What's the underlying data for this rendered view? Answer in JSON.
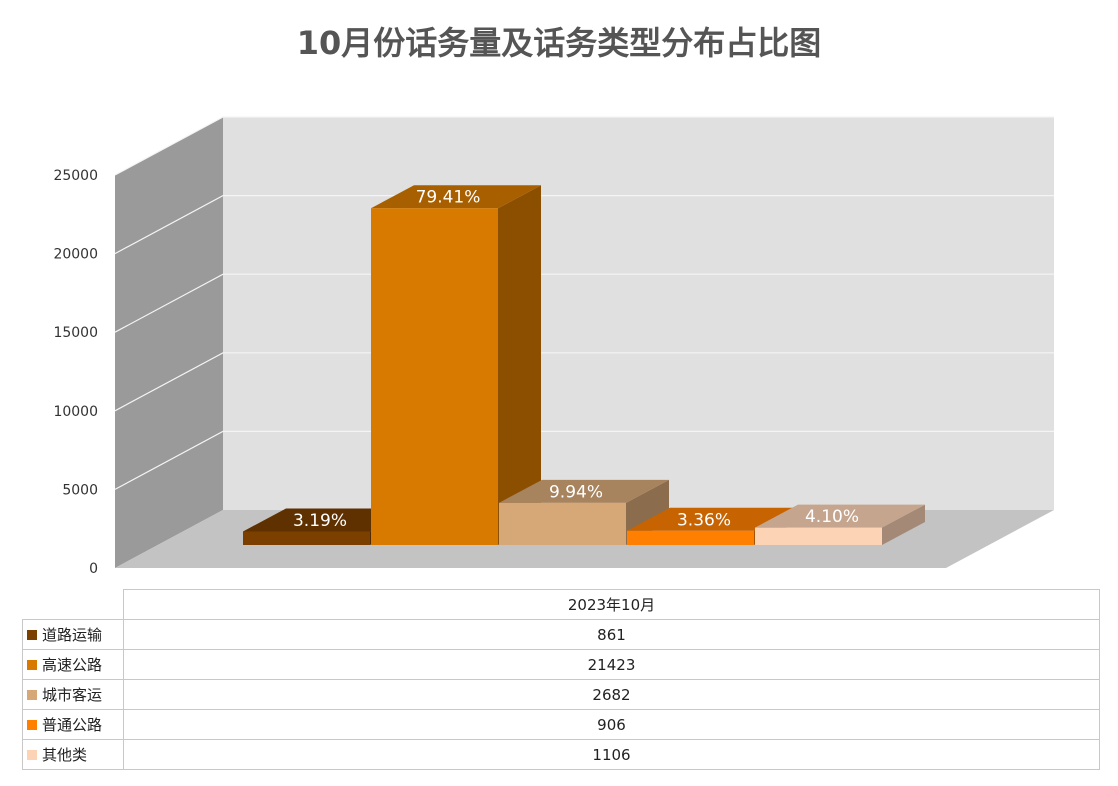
{
  "chart_data": {
    "type": "bar",
    "title": "10月份话务量及话务类型分布占比图",
    "categories": [
      "2023年10月"
    ],
    "ylim": [
      0,
      25000
    ],
    "yticks": [
      "0",
      "5000",
      "10000",
      "15000",
      "20000",
      "25000"
    ],
    "grid": true,
    "legend": "table-bottom",
    "series": [
      {
        "name": "道路运输",
        "values": [
          861
        ],
        "label": "3.19%",
        "color": "#7B3F00"
      },
      {
        "name": "高速公路",
        "values": [
          21423
        ],
        "label": "79.41%",
        "color": "#D87A00"
      },
      {
        "name": "城市客运",
        "values": [
          2682
        ],
        "label": "9.94%",
        "color": "#D6A878"
      },
      {
        "name": "普通公路",
        "values": [
          906
        ],
        "label": "3.36%",
        "color": "#FF7F00"
      },
      {
        "name": "其他类",
        "values": [
          1106
        ],
        "label": "4.10%",
        "color": "#FDD3B5"
      }
    ],
    "table_values": [
      "861",
      "21423",
      "2682",
      "906",
      "1106"
    ]
  }
}
